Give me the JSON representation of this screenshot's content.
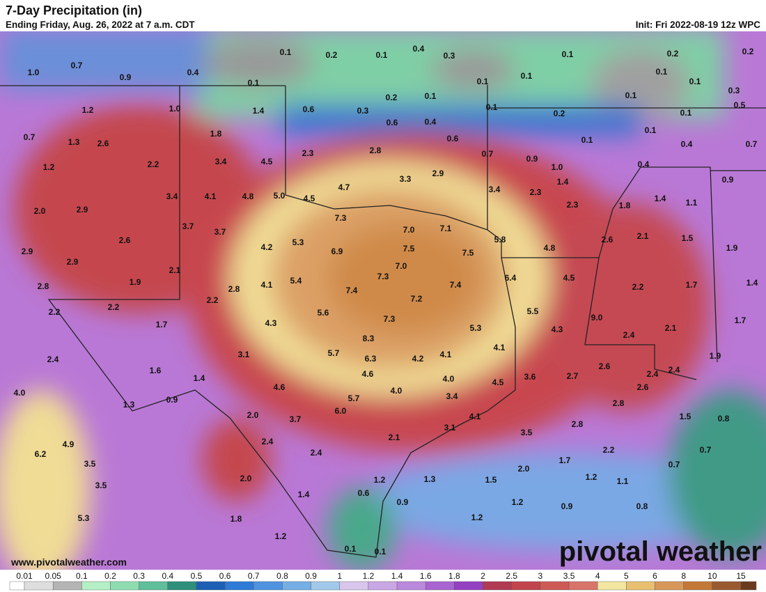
{
  "header": {
    "title": "7-Day Precipitation (in)",
    "subtitle": "Ending Friday, Aug. 26, 2022 at 7 a.m. CDT",
    "init": "Init: Fri 2022-08-19 12z WPC"
  },
  "map_labels": [
    "1.0",
    "0.7",
    "0.9",
    "0.4",
    "0.1",
    "0.2",
    "0.1",
    "0.4",
    "0.3",
    "0.1",
    "0.2",
    "0.2",
    "0.1",
    "0.1",
    "0.1",
    "0.1",
    "0.1",
    "0.3",
    "1.2",
    "1.0",
    "1.4",
    "0.6",
    "0.3",
    "0.2",
    "0.1",
    "0.1",
    "0.2",
    "0.1",
    "0.1",
    "0.5",
    "0.7",
    "1.3",
    "2.6",
    "1.8",
    "0.6",
    "0.4",
    "0.6",
    "0.1",
    "0.1",
    "0.4",
    "0.7",
    "1.2",
    "2.2",
    "3.4",
    "4.5",
    "2.3",
    "2.8",
    "0.7",
    "0.9",
    "1.0",
    "0.4",
    "3.3",
    "2.9",
    "4.7",
    "1.4",
    "0.9",
    "3.4",
    "4.1",
    "4.8",
    "5.0",
    "4.5",
    "3.4",
    "2.3",
    "1.4",
    "1.1",
    "2.3",
    "1.8",
    "2.0",
    "2.9",
    "7.3",
    "3.7",
    "3.7",
    "7.0",
    "7.1",
    "2.6",
    "5.3",
    "4.2",
    "6.9",
    "7.5",
    "5.8",
    "4.8",
    "2.6",
    "2.1",
    "1.5",
    "1.9",
    "2.9",
    "2.9",
    "7.5",
    "7.0",
    "2.1",
    "1.9",
    "2.8",
    "7.3",
    "7.4",
    "6.4",
    "4.5",
    "5.4",
    "4.1",
    "2.8",
    "7.4",
    "2.2",
    "1.7",
    "1.4",
    "2.2",
    "2.2",
    "7.2",
    "2.2",
    "5.6",
    "5.5",
    "9.0",
    "1.7",
    "1.7",
    "4.3",
    "7.3",
    "5.3",
    "4.3",
    "2.1",
    "2.4",
    "8.3",
    "4.1",
    "3.1",
    "5.7",
    "6.3",
    "4.2",
    "4.1",
    "2.4",
    "1.9",
    "2.6",
    "2.4",
    "1.6",
    "4.6",
    "1.4",
    "4.0",
    "3.6",
    "2.7",
    "2.4",
    "4.5",
    "4.6",
    "4.0",
    "2.6",
    "4.0",
    "0.9",
    "5.7",
    "3.4",
    "2.8",
    "1.3",
    "6.0",
    "2.0",
    "3.7",
    "4.1",
    "1.5",
    "0.8",
    "3.1",
    "2.8",
    "3.5",
    "2.1",
    "2.4",
    "2.4",
    "6.2",
    "4.9",
    "2.2",
    "0.7",
    "3.5",
    "1.7",
    "2.0",
    "0.7",
    "2.0",
    "1.2",
    "1.3",
    "1.5",
    "1.2",
    "1.1",
    "3.5",
    "1.4",
    "0.6",
    "0.9",
    "1.2",
    "0.9",
    "0.8",
    "1.8",
    "5.3",
    "1.2",
    "1.2",
    "0.1",
    "0.1"
  ],
  "legend": {
    "labels": [
      "0.01",
      "0.05",
      "0.1",
      "0.2",
      "0.3",
      "0.4",
      "0.5",
      "0.6",
      "0.7",
      "0.8",
      "0.9",
      "1",
      "1.2",
      "1.4",
      "1.6",
      "1.8",
      "2",
      "2.5",
      "3",
      "3.5",
      "4",
      "5",
      "6",
      "8",
      "10",
      "15"
    ],
    "colors": [
      "#ffffff",
      "#dedede",
      "#b4b4b4",
      "#b5efc6",
      "#8fdcb1",
      "#5fbf9a",
      "#2e8f7b",
      "#1d5fb5",
      "#2f7ad6",
      "#4f93e0",
      "#76aee6",
      "#a2c8ea",
      "#d8c6ec",
      "#c9a7e4",
      "#ba88dc",
      "#a864d1",
      "#9440c2",
      "#b03a52",
      "#c2444c",
      "#cf5a55",
      "#d8746a",
      "#f2e6a0",
      "#e8c070",
      "#d8985a",
      "#c47838",
      "#9a5a30",
      "#6b3a1e"
    ]
  },
  "footer": {
    "website": "www.pivotalweather.com",
    "logo": "pivotal weather"
  }
}
